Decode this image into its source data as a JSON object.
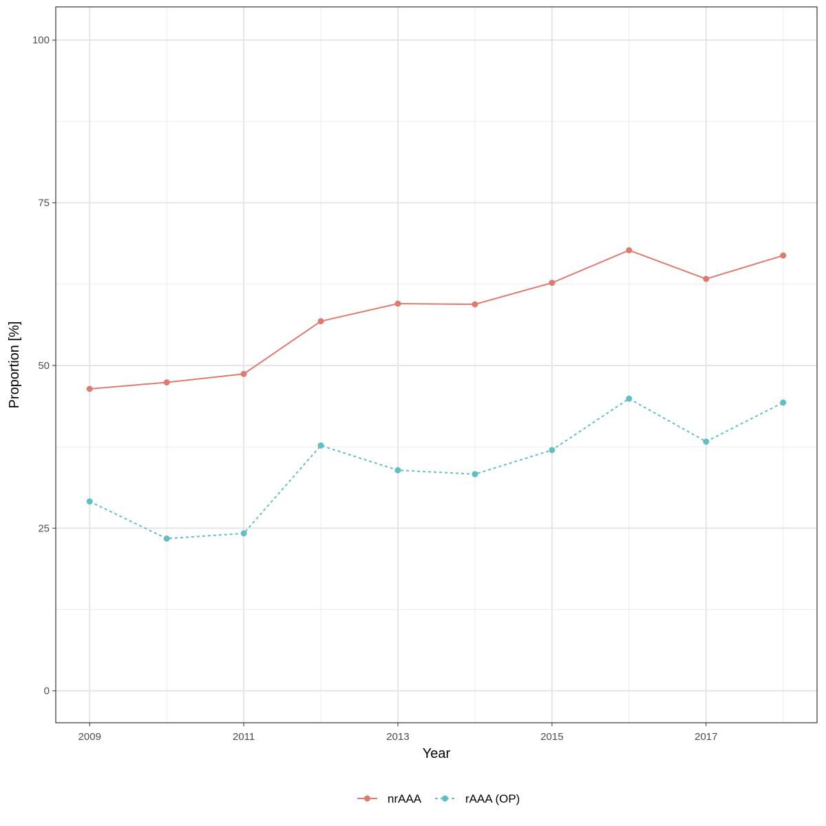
{
  "chart_data": {
    "type": "line",
    "title": "",
    "xlabel": "Year",
    "ylabel": "Proportion [%]",
    "x": [
      2009,
      2010,
      2011,
      2012,
      2013,
      2014,
      2015,
      2016,
      2017,
      2018
    ],
    "xlim": [
      2008.56,
      2018.44
    ],
    "ylim": [
      -4.9,
      105.1
    ],
    "xticks": [
      2009,
      2011,
      2013,
      2015,
      2017
    ],
    "xtick_labels": [
      "2009",
      "2011",
      "2013",
      "2015",
      "2017"
    ],
    "yticks": [
      0,
      25,
      50,
      75,
      100
    ],
    "ytick_labels": [
      "0",
      "25",
      "50",
      "75",
      "100"
    ],
    "grid": true,
    "legend_position": "bottom",
    "series": [
      {
        "name": "nrAAA",
        "color": "#E07A6F",
        "linestyle": "solid",
        "values": [
          46.4,
          47.4,
          48.7,
          56.8,
          59.5,
          59.4,
          62.7,
          67.7,
          63.3,
          66.9
        ]
      },
      {
        "name": "rAAA (OP)",
        "color": "#5FBFC4",
        "linestyle": "dashed",
        "values": [
          29.1,
          23.4,
          24.2,
          37.7,
          33.9,
          33.3,
          37.0,
          44.9,
          38.3,
          44.3
        ]
      }
    ]
  }
}
